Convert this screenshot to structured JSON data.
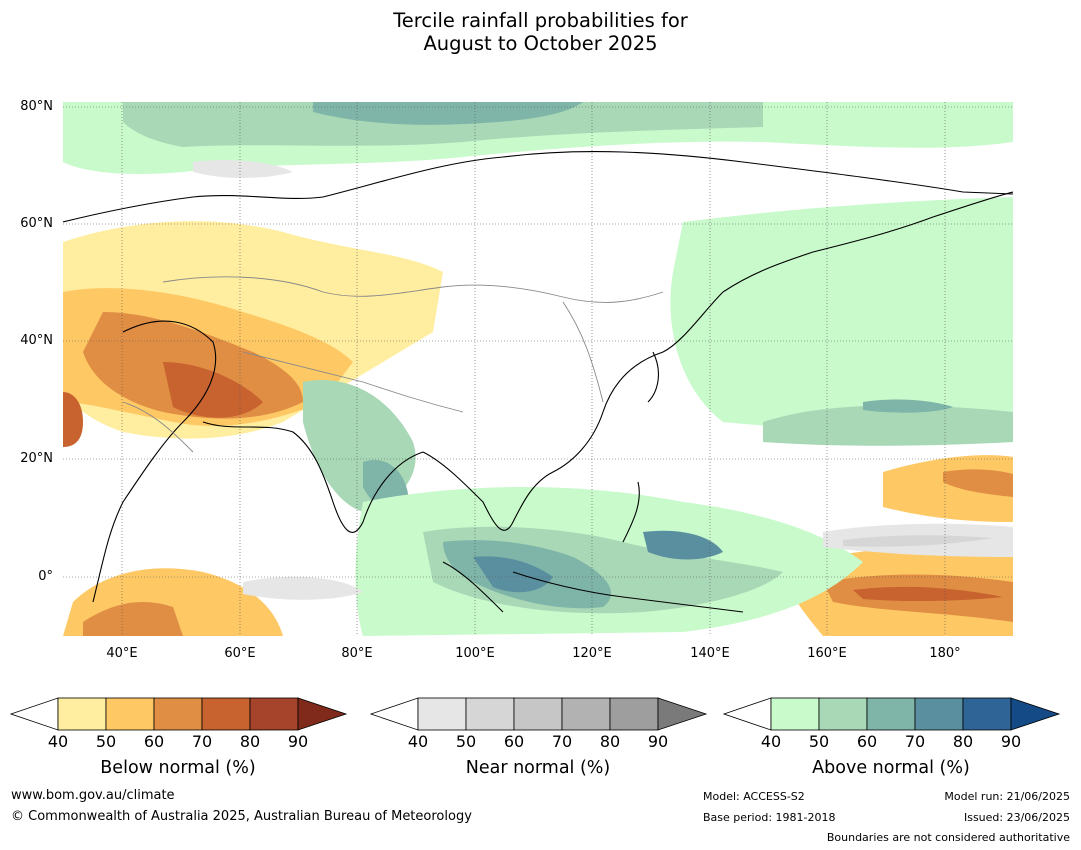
{
  "title_line1": "Tercile rainfall probabilities for",
  "title_line2": "August to October 2025",
  "latitude_labels": [
    "80°N",
    "60°N",
    "40°N",
    "20°N",
    "0°"
  ],
  "longitude_labels": [
    "40°E",
    "60°E",
    "80°E",
    "100°E",
    "120°E",
    "140°E",
    "160°E",
    "180°"
  ],
  "colorbars": [
    {
      "label": "Below normal (%)",
      "ticks": [
        "40",
        "50",
        "60",
        "70",
        "80",
        "90"
      ],
      "colors": [
        "#ffeda0",
        "#fec965",
        "#e08e44",
        "#c8622f",
        "#a5442a",
        "#7f2a1a"
      ]
    },
    {
      "label": "Near normal (%)",
      "ticks": [
        "40",
        "50",
        "60",
        "70",
        "80",
        "90"
      ],
      "colors": [
        "#e6e6e6",
        "#d6d6d6",
        "#c6c6c6",
        "#b2b2b2",
        "#9e9e9e",
        "#7a7a7a"
      ]
    },
    {
      "label": "Above normal (%)",
      "ticks": [
        "40",
        "50",
        "60",
        "70",
        "80",
        "90"
      ],
      "colors": [
        "#c8facb",
        "#a8d8b6",
        "#7fb4a8",
        "#5a8fa0",
        "#2f6496",
        "#144a86"
      ]
    }
  ],
  "footer": {
    "website": "www.bom.gov.au/climate",
    "copyright": "© Commonwealth of Australia 2025, Australian Bureau of Meteorology",
    "model": "Model: ACCESS-S2",
    "base_period": "Base period: 1981-2018",
    "model_run": "Model run: 21/06/2025",
    "issued": "Issued: 23/06/2025",
    "boundaries": "Boundaries are not considered authoritative"
  }
}
